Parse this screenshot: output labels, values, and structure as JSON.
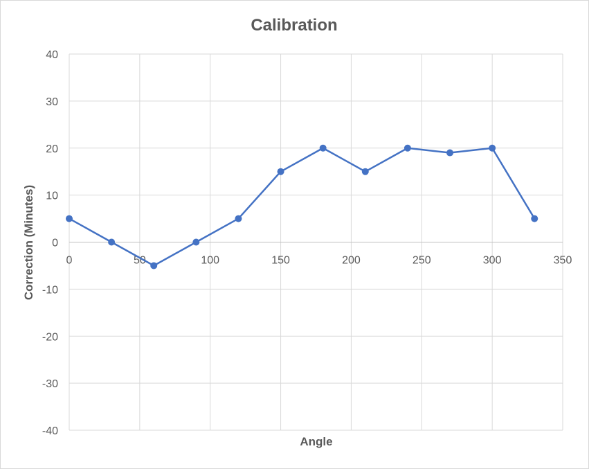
{
  "chart_data": {
    "type": "scatter",
    "title": "Calibration",
    "xlabel": "Angle",
    "ylabel": "Correction (Minutes)",
    "xlim": [
      0,
      350
    ],
    "ylim": [
      -40,
      40
    ],
    "x_ticks": [
      0,
      50,
      100,
      150,
      200,
      250,
      300,
      350
    ],
    "y_ticks": [
      40,
      30,
      20,
      10,
      0,
      -10,
      -20,
      -30,
      -40
    ],
    "grid": true,
    "legend": "none",
    "series": [
      {
        "color": "#4472c4",
        "line": true,
        "markers": true,
        "x": [
          0,
          30,
          60,
          90,
          120,
          150,
          180,
          210,
          240,
          270,
          300,
          330
        ],
        "y": [
          5,
          0,
          -5,
          0,
          5,
          15,
          20,
          15,
          20,
          19,
          20,
          5
        ]
      }
    ]
  }
}
